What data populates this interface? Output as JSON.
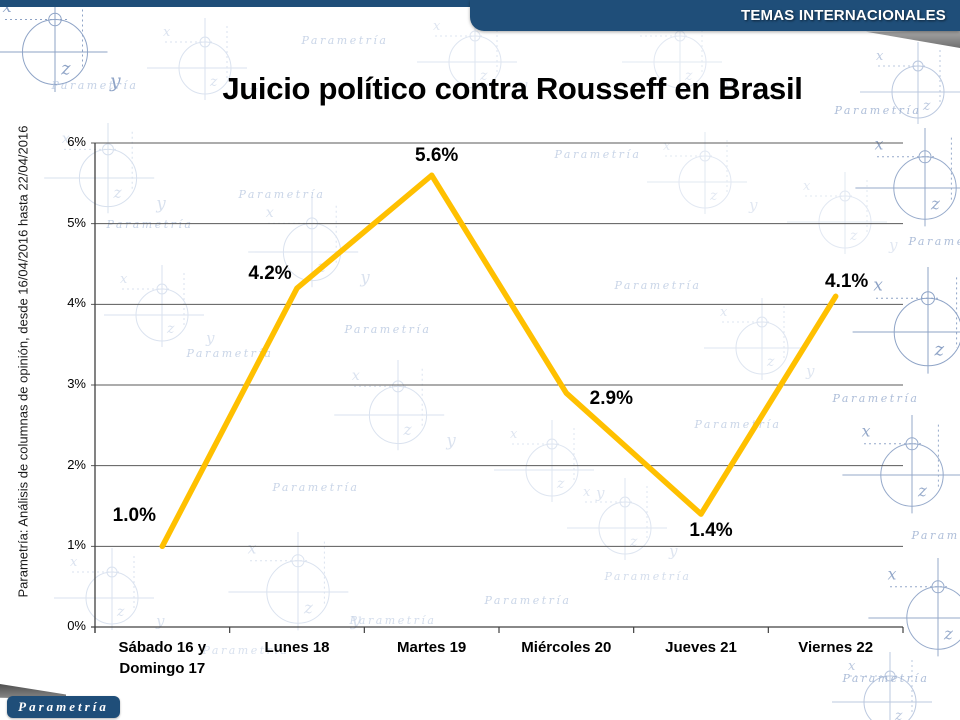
{
  "banner": {
    "label": "TEMAS INTERNACIONALES"
  },
  "side_note": "Parametría: Análisis de columnas de opinión, desde 16/04/2016 hasta 22/04/2016",
  "logo": {
    "text": "Parametría"
  },
  "watermark_text": "Parametría",
  "colors": {
    "navy": "#1F4E79",
    "line_gold": "#FFC000",
    "gridline": "#595959",
    "axis": "#404040",
    "watermark_light": "#b7c7e0",
    "watermark_mid": "#9fb2d2",
    "watermark_dark": "#7b94bd"
  },
  "chart_data": {
    "type": "line",
    "title": "Juicio político contra Rousseff en Brasil",
    "categories": [
      "Sábado 16 y\nDomingo 17",
      "Lunes 18",
      "Martes 19",
      "Miércoles 20",
      "Jueves 21",
      "Viernes 22"
    ],
    "values": [
      1.0,
      4.2,
      5.6,
      2.9,
      1.4,
      4.1
    ],
    "point_labels": [
      "1.0%",
      "4.2%",
      "5.6%",
      "2.9%",
      "1.4%",
      "4.1%"
    ],
    "xlabel": "",
    "ylabel": "",
    "ylim": [
      0,
      6
    ],
    "ytick_labels": [
      "0%",
      "1%",
      "2%",
      "3%",
      "4%",
      "5%",
      "6%"
    ],
    "grid": true,
    "legend": "none",
    "line_color": "#FFC000"
  }
}
